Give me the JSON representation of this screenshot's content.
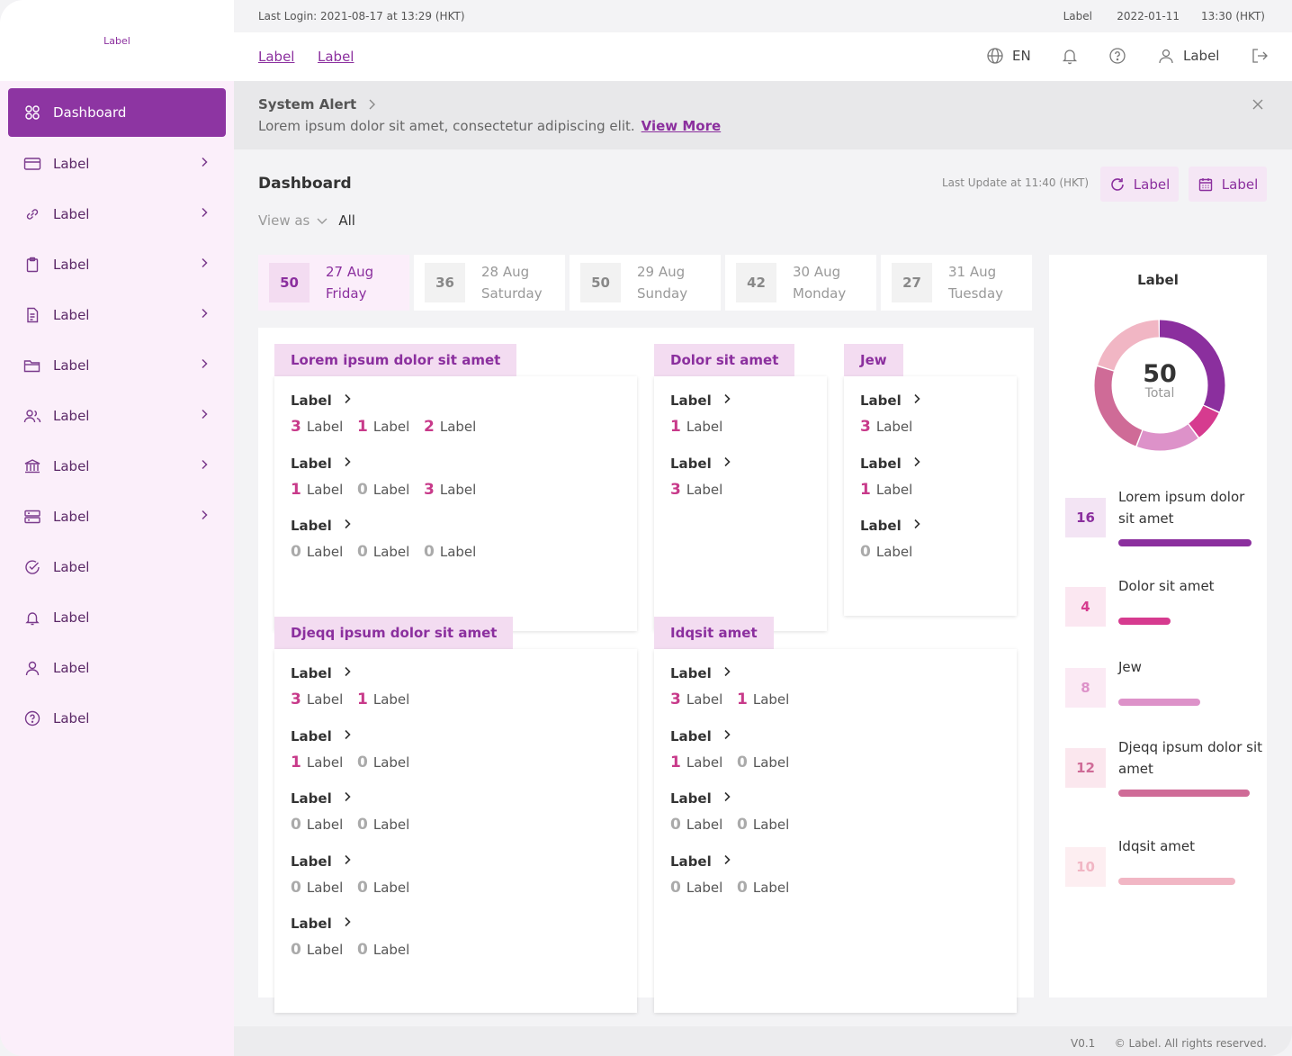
{
  "app": {
    "logo_label": "Label"
  },
  "sidebar": {
    "items": [
      {
        "label": "Dashboard",
        "icon": "dashboard-icon"
      },
      {
        "label": "Label",
        "icon": "card-icon"
      },
      {
        "label": "Label",
        "icon": "link-icon"
      },
      {
        "label": "Label",
        "icon": "clipboard-icon"
      },
      {
        "label": "Label",
        "icon": "document-icon"
      },
      {
        "label": "Label",
        "icon": "folder-icon"
      },
      {
        "label": "Label",
        "icon": "users-icon"
      },
      {
        "label": "Label",
        "icon": "bank-icon"
      },
      {
        "label": "Label",
        "icon": "server-icon"
      },
      {
        "label": "Label",
        "icon": "check-circle-icon"
      },
      {
        "label": "Label",
        "icon": "bell-icon"
      },
      {
        "label": "Label",
        "icon": "user-icon"
      },
      {
        "label": "Label",
        "icon": "help-icon"
      }
    ]
  },
  "topbar": {
    "last_login": "Last Login: 2021-08-17 at 13:29 (HKT)",
    "label": "Label",
    "date": "2022-01-11",
    "time": "13:30 (HKT)"
  },
  "header": {
    "link1": "Label",
    "link2": "Label",
    "language": "EN",
    "user_label": "Label"
  },
  "alert": {
    "title": "System Alert",
    "message": "Lorem ipsum dolor sit amet, consectetur adipiscing elit.",
    "link": "View More"
  },
  "dashboard": {
    "title": "Dashboard",
    "view_as": "View as",
    "view_value": "All",
    "last_update": "Last Update at 11:40 (HKT)",
    "refresh_label": "Label",
    "calendar_label": "Label"
  },
  "date_tabs": [
    {
      "count": "50",
      "date": "27 Aug",
      "day": "Friday"
    },
    {
      "count": "36",
      "date": "28 Aug",
      "day": "Saturday"
    },
    {
      "count": "50",
      "date": "29 Aug",
      "day": "Sunday"
    },
    {
      "count": "42",
      "date": "30 Aug",
      "day": "Monday"
    },
    {
      "count": "27",
      "date": "31 Aug",
      "day": "Tuesday"
    }
  ],
  "cards": {
    "c1": {
      "title": "Lorem ipsum dolor sit amet",
      "groups": [
        {
          "title": "Label",
          "vals": [
            [
              "3",
              "Label"
            ],
            [
              "1",
              "Label"
            ],
            [
              "2",
              "Label"
            ]
          ]
        },
        {
          "title": "Label",
          "vals": [
            [
              "1",
              "Label"
            ],
            [
              "0",
              "Label"
            ],
            [
              "3",
              "Label"
            ]
          ]
        },
        {
          "title": "Label",
          "vals": [
            [
              "0",
              "Label"
            ],
            [
              "0",
              "Label"
            ],
            [
              "0",
              "Label"
            ]
          ]
        }
      ]
    },
    "c2": {
      "title": "Dolor sit amet",
      "groups": [
        {
          "title": "Label",
          "vals": [
            [
              "1",
              "Label"
            ]
          ]
        },
        {
          "title": "Label",
          "vals": [
            [
              "3",
              "Label"
            ]
          ]
        }
      ]
    },
    "c3": {
      "title": "Jew",
      "groups": [
        {
          "title": "Label",
          "vals": [
            [
              "3",
              "Label"
            ]
          ]
        },
        {
          "title": "Label",
          "vals": [
            [
              "1",
              "Label"
            ]
          ]
        },
        {
          "title": "Label",
          "vals": [
            [
              "0",
              "Label"
            ]
          ]
        }
      ]
    },
    "c4": {
      "title": "Djeqq ipsum dolor sit amet",
      "groups": [
        {
          "title": "Label",
          "vals": [
            [
              "3",
              "Label"
            ],
            [
              "1",
              "Label"
            ]
          ]
        },
        {
          "title": "Label",
          "vals": [
            [
              "1",
              "Label"
            ],
            [
              "0",
              "Label"
            ]
          ]
        },
        {
          "title": "Label",
          "vals": [
            [
              "0",
              "Label"
            ],
            [
              "0",
              "Label"
            ]
          ]
        },
        {
          "title": "Label",
          "vals": [
            [
              "0",
              "Label"
            ],
            [
              "0",
              "Label"
            ]
          ]
        },
        {
          "title": "Label",
          "vals": [
            [
              "0",
              "Label"
            ],
            [
              "0",
              "Label"
            ]
          ]
        }
      ]
    },
    "c5": {
      "title": "Idqsit amet",
      "groups": [
        {
          "title": "Label",
          "vals": [
            [
              "3",
              "Label"
            ],
            [
              "1",
              "Label"
            ]
          ]
        },
        {
          "title": "Label",
          "vals": [
            [
              "1",
              "Label"
            ],
            [
              "0",
              "Label"
            ]
          ]
        },
        {
          "title": "Label",
          "vals": [
            [
              "0",
              "Label"
            ],
            [
              "0",
              "Label"
            ]
          ]
        },
        {
          "title": "Label",
          "vals": [
            [
              "0",
              "Label"
            ],
            [
              "0",
              "Label"
            ]
          ]
        }
      ]
    }
  },
  "summary": {
    "title": "Label",
    "total": "50",
    "total_label": "Total",
    "items": [
      {
        "count": "16",
        "name": "Lorem ipsum dolor sit amet",
        "value": 16,
        "color": "#8b2f9e",
        "bg": "#f3e4f4"
      },
      {
        "count": "4",
        "name": "Dolor sit amet",
        "value": 4,
        "color": "#d63b8f",
        "bg": "#fbe7f1"
      },
      {
        "count": "8",
        "name": "Jew",
        "value": 8,
        "color": "#dd92c9",
        "bg": "#fbeaf4"
      },
      {
        "count": "12",
        "name": "Djeqq ipsum dolor sit amet",
        "value": 12,
        "color": "#cf6b97",
        "bg": "#fbe7ee"
      },
      {
        "count": "10",
        "name": "Idqsit amet",
        "value": 10,
        "color": "#f1b6c4",
        "bg": "#fdeef1"
      }
    ]
  },
  "footer": {
    "version": "V0.1",
    "copyright": "© Label. All rights reserved."
  }
}
